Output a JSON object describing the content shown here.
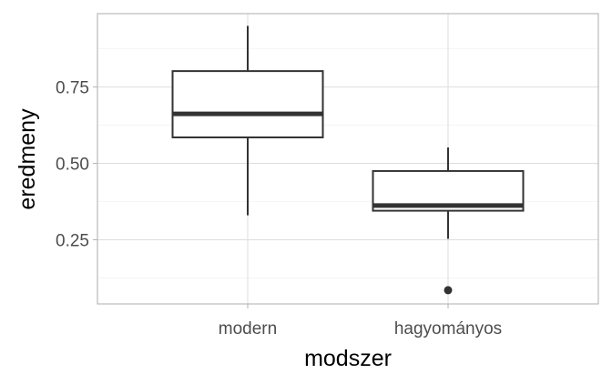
{
  "chart_data": {
    "type": "boxplot",
    "xlabel": "modszer",
    "ylabel": "eredmeny",
    "categories": [
      "modern",
      "hagyományos"
    ],
    "y_ticks": [
      "0.25",
      "0.50",
      "0.75"
    ],
    "ylim": [
      0.04,
      0.99
    ],
    "boxes": [
      {
        "category": "modern",
        "lower_whisker": 0.33,
        "q1": 0.585,
        "median": 0.662,
        "q3": 0.802,
        "upper_whisker": 0.95,
        "outliers": []
      },
      {
        "category": "hagyományos",
        "lower_whisker": 0.253,
        "q1": 0.345,
        "median": 0.362,
        "q3": 0.475,
        "upper_whisker": 0.552,
        "outliers": [
          0.085
        ]
      }
    ],
    "grid": true,
    "colors": {
      "box_line": "#333333",
      "grid": "#dedede",
      "panel_border": "#b3b3b3"
    }
  }
}
